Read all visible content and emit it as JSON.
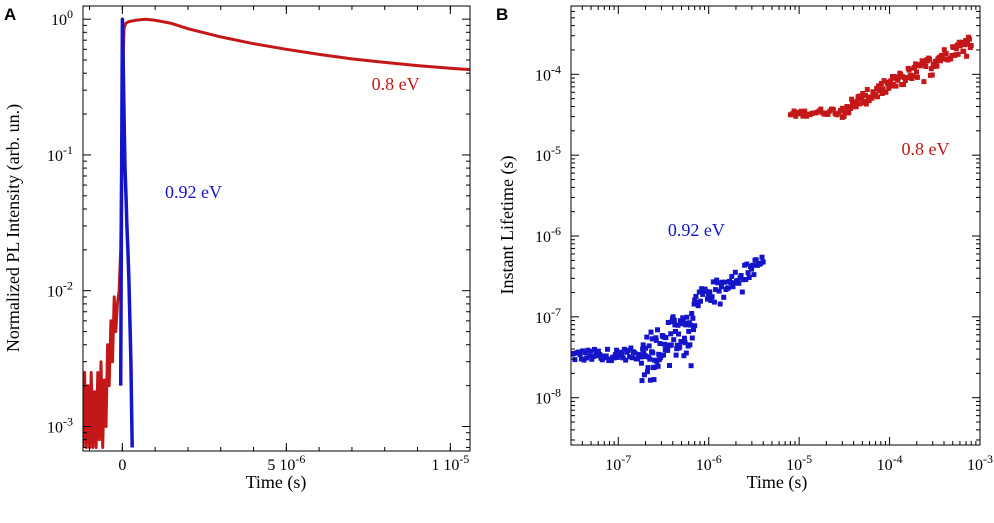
{
  "figure": {
    "caption": ""
  },
  "colors": {
    "red": "#c41818",
    "blue": "#1414c8",
    "axis": "#000000"
  },
  "chart_data": [
    {
      "panel": "A",
      "type": "line",
      "title": "",
      "xlabel": "Time (s)",
      "ylabel": "Normalized PL Intensity (arb. un.)",
      "xscale": "linear",
      "yscale": "log",
      "xlim": [
        -1.2e-06,
        1.06e-05
      ],
      "ylim": [
        0.00066,
        1.25
      ],
      "x_ticks": [
        {
          "value": 0,
          "label": "0"
        },
        {
          "value": 5e-06,
          "label_mant": "5 10",
          "label_exp": "-6"
        },
        {
          "value": 1e-05,
          "label_mant": "1 10",
          "label_exp": "-5"
        }
      ],
      "y_ticks": [
        {
          "value": 1,
          "label_mant": "10",
          "label_exp": "0"
        },
        {
          "value": 0.1,
          "label_mant": "10",
          "label_exp": "-1"
        },
        {
          "value": 0.01,
          "label_mant": "10",
          "label_exp": "-2"
        },
        {
          "value": 0.001,
          "label_mant": "10",
          "label_exp": "-3"
        }
      ],
      "series": [
        {
          "name": "0.8 eV",
          "color": "#c41818",
          "x": [
            -1.2e-06,
            -1.15e-06,
            -1.1e-06,
            -1.05e-06,
            -1e-06,
            -9.5e-07,
            -9e-07,
            -8.5e-07,
            -8e-07,
            -7.5e-07,
            -7e-07,
            -6.5e-07,
            -6e-07,
            -5.5e-07,
            -5e-07,
            -4.5e-07,
            -4e-07,
            -3.5e-07,
            -3e-07,
            -2.5e-07,
            -2e-07,
            -1.5e-07,
            -1e-07,
            -5e-08,
            0,
            5e-08,
            1e-07,
            2e-07,
            4e-07,
            7e-07,
            1e-06,
            1.5e-06,
            2e-06,
            3e-06,
            4e-06,
            5e-06,
            6e-06,
            7e-06,
            8e-06,
            9e-06,
            1e-05,
            1.06e-05
          ],
          "values": [
            0.0007,
            0.0025,
            0.0007,
            0.002,
            0.0007,
            0.0025,
            0.0007,
            0.0018,
            0.0007,
            0.0025,
            0.0008,
            0.003,
            0.0007,
            0.0022,
            0.001,
            0.004,
            0.002,
            0.006,
            0.003,
            0.009,
            0.005,
            0.008,
            0.01,
            0.02,
            0.3,
            0.85,
            0.93,
            0.96,
            0.98,
            1.0,
            0.98,
            0.93,
            0.85,
            0.74,
            0.66,
            0.6,
            0.55,
            0.51,
            0.48,
            0.455,
            0.435,
            0.425
          ]
        },
        {
          "name": "0.92 eV",
          "color": "#1414c8",
          "x": [
            -5e-08,
            -2e-08,
            0,
            2e-08,
            5e-08,
            8e-08,
            1.1e-07,
            1.4e-07,
            1.7e-07,
            2e-07,
            2.3e-07,
            2.6e-07,
            2.8e-07,
            3e-07
          ],
          "values": [
            0.002,
            0.1,
            1.0,
            0.6,
            0.2,
            0.08,
            0.05,
            0.03,
            0.02,
            0.012,
            0.006,
            0.003,
            0.0015,
            0.0007
          ]
        }
      ],
      "annotations": [
        {
          "text": "0.8 eV",
          "series": "0.8 eV",
          "x": 7.6e-06,
          "y": 0.3
        },
        {
          "text": "0.92 eV",
          "series": "0.92 eV",
          "x": 1.3e-06,
          "y": 0.048
        }
      ]
    },
    {
      "panel": "B",
      "type": "scatter",
      "title": "",
      "xlabel": "Time (s)",
      "ylabel": "Instant Lifetime (s)",
      "xscale": "log",
      "yscale": "log",
      "xlim": [
        3e-08,
        0.001
      ],
      "ylim": [
        2.6e-09,
        0.0007
      ],
      "x_ticks": [
        {
          "value": 1e-07,
          "label_mant": "10",
          "label_exp": "-7"
        },
        {
          "value": 1e-06,
          "label_mant": "10",
          "label_exp": "-6"
        },
        {
          "value": 1e-05,
          "label_mant": "10",
          "label_exp": "-5"
        },
        {
          "value": 0.0001,
          "label_mant": "10",
          "label_exp": "-4"
        },
        {
          "value": 0.001,
          "label_mant": "10",
          "label_exp": "-3"
        }
      ],
      "y_ticks": [
        {
          "value": 0.0001,
          "label_mant": "10",
          "label_exp": "-4"
        },
        {
          "value": 1e-05,
          "label_mant": "10",
          "label_exp": "-5"
        },
        {
          "value": 1e-06,
          "label_mant": "10",
          "label_exp": "-6"
        },
        {
          "value": 1e-07,
          "label_mant": "10",
          "label_exp": "-7"
        },
        {
          "value": 1e-08,
          "label_mant": "10",
          "label_exp": "-8"
        }
      ],
      "series": [
        {
          "name": "0.92 eV",
          "color": "#1414c8",
          "segments": [
            {
              "x_start": 3e-08,
              "x_end": 1.8e-07,
              "y_start": 3.3e-08,
              "y_end": 3.5e-08,
              "scatter": 0.15,
              "n": 55
            },
            {
              "x_start": 1.8e-07,
              "x_end": 7e-07,
              "y_start": 3e-08,
              "y_end": 8e-08,
              "scatter": 0.55,
              "n": 90
            },
            {
              "x_start": 7e-07,
              "x_end": 4e-06,
              "y_start": 1.6e-07,
              "y_end": 4.8e-07,
              "scatter": 0.2,
              "n": 60
            }
          ]
        },
        {
          "name": "0.8 eV",
          "color": "#c41818",
          "segments": [
            {
              "x_start": 8e-06,
              "x_end": 3e-05,
              "y_start": 3.2e-05,
              "y_end": 3.6e-05,
              "scatter": 0.08,
              "n": 30
            },
            {
              "x_start": 3e-05,
              "x_end": 0.0008,
              "y_start": 3.6e-05,
              "y_end": 0.00026,
              "scatter": 0.18,
              "n": 140
            }
          ]
        }
      ],
      "annotations": [
        {
          "text": "0.92 eV",
          "series": "0.92 eV",
          "x": 7.3e-07,
          "y": 1e-06
        },
        {
          "text": "0.8 eV",
          "series": "0.8 eV",
          "x": 0.00025,
          "y": 1e-05
        }
      ]
    }
  ]
}
